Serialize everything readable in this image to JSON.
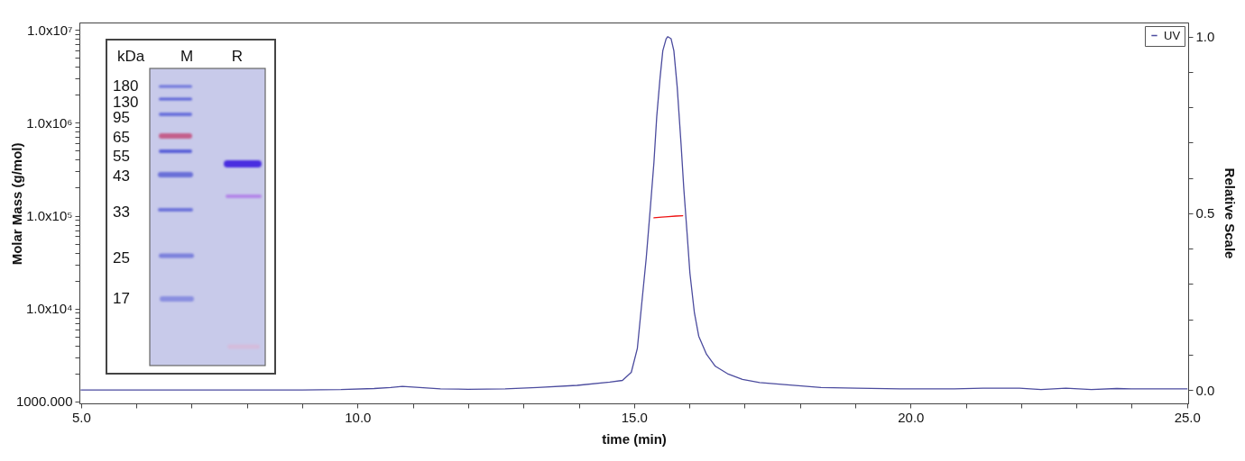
{
  "chart_data": {
    "type": "line",
    "xlabel": "time (min)",
    "ylabel": "Molar Mass (g/mol)",
    "y2label": "Relative Scale",
    "log": "y",
    "legend": "top right",
    "xlim": [
      4.97,
      25.02
    ],
    "xticks": [
      {
        "value": 5,
        "label": "5.0"
      },
      {
        "value": 6,
        "label": null
      },
      {
        "value": 7,
        "label": null
      },
      {
        "value": 8,
        "label": null
      },
      {
        "value": 9,
        "label": null
      },
      {
        "value": 10,
        "label": "10.0"
      },
      {
        "value": 11,
        "label": null
      },
      {
        "value": 12,
        "label": null
      },
      {
        "value": 13,
        "label": null
      },
      {
        "value": 14,
        "label": null
      },
      {
        "value": 15,
        "label": "15.0"
      },
      {
        "value": 16,
        "label": null
      },
      {
        "value": 17,
        "label": null
      },
      {
        "value": 18,
        "label": null
      },
      {
        "value": 19,
        "label": null
      },
      {
        "value": 20,
        "label": "20.0"
      },
      {
        "value": 21,
        "label": null
      },
      {
        "value": 22,
        "label": null
      },
      {
        "value": 23,
        "label": null
      },
      {
        "value": 24,
        "label": null
      },
      {
        "value": 25,
        "label": "25.0"
      }
    ],
    "ylim": [
      955,
      12000000
    ],
    "yticks": [
      {
        "value": 1000,
        "label": "1000.000"
      },
      {
        "value": 2000,
        "label": null
      },
      {
        "value": 3000,
        "label": null
      },
      {
        "value": 4000,
        "label": null
      },
      {
        "value": 5000,
        "label": null
      },
      {
        "value": 6000,
        "label": null
      },
      {
        "value": 7000,
        "label": null
      },
      {
        "value": 8000,
        "label": null
      },
      {
        "value": 9000,
        "label": null
      },
      {
        "value": 10000,
        "label": "1.0x10⁴"
      },
      {
        "value": 20000,
        "label": null
      },
      {
        "value": 30000,
        "label": null
      },
      {
        "value": 40000,
        "label": null
      },
      {
        "value": 50000,
        "label": null
      },
      {
        "value": 60000,
        "label": null
      },
      {
        "value": 70000,
        "label": null
      },
      {
        "value": 80000,
        "label": null
      },
      {
        "value": 90000,
        "label": null
      },
      {
        "value": 100000,
        "label": "1.0x10⁵"
      },
      {
        "value": 200000,
        "label": null
      },
      {
        "value": 300000,
        "label": null
      },
      {
        "value": 400000,
        "label": null
      },
      {
        "value": 500000,
        "label": null
      },
      {
        "value": 600000,
        "label": null
      },
      {
        "value": 700000,
        "label": null
      },
      {
        "value": 800000,
        "label": null
      },
      {
        "value": 900000,
        "label": null
      },
      {
        "value": 1000000,
        "label": "1.0x10⁶"
      },
      {
        "value": 2000000,
        "label": null
      },
      {
        "value": 3000000,
        "label": null
      },
      {
        "value": 4000000,
        "label": null
      },
      {
        "value": 5000000,
        "label": null
      },
      {
        "value": 6000000,
        "label": null
      },
      {
        "value": 7000000,
        "label": null
      },
      {
        "value": 8000000,
        "label": null
      },
      {
        "value": 9000000,
        "label": null
      },
      {
        "value": 10000000,
        "label": "1.0x10⁷"
      }
    ],
    "y2lim": [
      -0.038,
      1.04
    ],
    "y2ticks": [
      {
        "value": 0,
        "label": "0.0"
      },
      {
        "value": 0.1,
        "label": null
      },
      {
        "value": 0.2,
        "label": null
      },
      {
        "value": 0.3,
        "label": null
      },
      {
        "value": 0.4,
        "label": null
      },
      {
        "value": 0.5,
        "label": "0.5"
      },
      {
        "value": 0.6,
        "label": null
      },
      {
        "value": 0.7,
        "label": null
      },
      {
        "value": 0.8,
        "label": null
      },
      {
        "value": 0.9,
        "label": null
      },
      {
        "value": 1.0,
        "label": "1.0"
      }
    ],
    "series": [
      {
        "color": "#ee1111",
        "x": [
          15.36,
          15.5,
          15.62,
          15.75,
          15.88
        ],
        "values": [
          95000,
          96500,
          97800,
          99000,
          100000
        ]
      },
      {
        "name": "UV",
        "axis": "y2",
        "color": "#4b4b9e",
        "x": [
          5.0,
          6.0,
          7.0,
          8.0,
          9.0,
          9.7,
          10.3,
          10.6,
          10.81,
          11.0,
          11.5,
          12.0,
          12.67,
          13.25,
          13.97,
          14.56,
          14.79,
          14.95,
          15.06,
          15.14,
          15.22,
          15.3,
          15.36,
          15.41,
          15.47,
          15.52,
          15.58,
          15.61,
          15.67,
          15.72,
          15.78,
          15.85,
          15.9,
          15.96,
          16.01,
          16.09,
          16.17,
          16.31,
          16.47,
          16.69,
          16.96,
          17.27,
          17.72,
          18.38,
          19.03,
          19.81,
          20.79,
          21.31,
          21.97,
          22.36,
          22.81,
          23.27,
          23.73,
          23.99,
          24.9,
          25.0
        ],
        "values": [
          0.0,
          0.0,
          0.0,
          0.0,
          0.0,
          0.001,
          0.004,
          0.007,
          0.01,
          0.008,
          0.003,
          0.002,
          0.003,
          0.007,
          0.013,
          0.022,
          0.027,
          0.05,
          0.118,
          0.246,
          0.373,
          0.526,
          0.645,
          0.773,
          0.883,
          0.96,
          0.994,
          1.0,
          0.994,
          0.96,
          0.858,
          0.696,
          0.569,
          0.441,
          0.331,
          0.22,
          0.152,
          0.101,
          0.067,
          0.046,
          0.03,
          0.021,
          0.015,
          0.007,
          0.005,
          0.003,
          0.003,
          0.005,
          0.005,
          0.001,
          0.005,
          0.001,
          0.004,
          0.003,
          0.003,
          0.003
        ]
      }
    ],
    "annotations": [
      "kDa",
      "M",
      "R",
      "180",
      "130",
      "95",
      "65",
      "55",
      "43",
      "33",
      "25",
      "17"
    ]
  }
}
